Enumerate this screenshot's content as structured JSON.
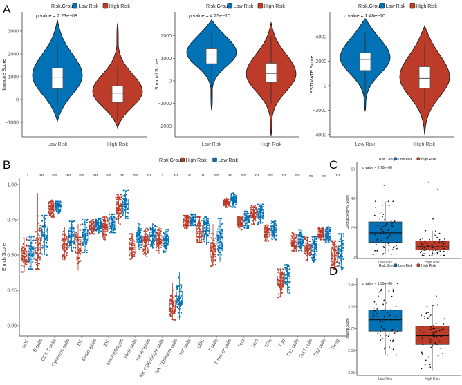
{
  "colors": {
    "low": "#0072B5",
    "high": "#BC3C29"
  },
  "chart_data": [
    {
      "panel": "A",
      "type": "violin",
      "legend_title": "Risk.Group",
      "legend": [
        "Low Risk",
        "High Risk"
      ],
      "legend_placement": "top",
      "plots": [
        {
          "ylabel": "Immune Score",
          "pvalue": "p value = 2.23e−08",
          "yticks": [
            -1000,
            0,
            1000,
            2000,
            3000
          ],
          "categories": [
            "Low Risk",
            "High Risk"
          ],
          "groups": [
            {
              "name": "Low Risk",
              "min": -950,
              "q1": 480,
              "median": 980,
              "q3": 1380,
              "max": 3500,
              "whisker": [
                -250,
                2500
              ],
              "mode": 1050
            },
            {
              "name": "High Risk",
              "min": -1250,
              "q1": -130,
              "median": 280,
              "q3": 600,
              "max": 3350,
              "whisker": [
                -900,
                1450
              ],
              "mode": 350
            }
          ]
        },
        {
          "ylabel": "Stromal Score",
          "pvalue": "p value = 4.25e−10",
          "yticks": [
            -2000,
            -1000,
            0,
            1000,
            2000
          ],
          "categories": [
            "Low Risk",
            "High Risk"
          ],
          "groups": [
            {
              "name": "Low Risk",
              "min": -1300,
              "q1": 760,
              "median": 1150,
              "q3": 1420,
              "max": 2700,
              "whisker": [
                -750,
                2150
              ],
              "mode": 1250
            },
            {
              "name": "High Risk",
              "min": -2450,
              "q1": -60,
              "median": 330,
              "q3": 780,
              "max": 2600,
              "whisker": [
                -1000,
                2000
              ],
              "mode": 300
            }
          ]
        },
        {
          "ylabel": "ESTIMATE Score",
          "pvalue": "p value = 1.48e−10",
          "yticks": [
            -4000,
            -2000,
            0,
            2000,
            4000
          ],
          "categories": [
            "Low Risk",
            "High Risk"
          ],
          "groups": [
            {
              "name": "Low Risk",
              "min": -2100,
              "q1": 1250,
              "median": 2150,
              "q3": 2700,
              "max": 5500,
              "whisker": [
                -1000,
                4300
              ],
              "mode": 2300
            },
            {
              "name": "High Risk",
              "min": -4000,
              "q1": -200,
              "median": 600,
              "q3": 1550,
              "max": 4900,
              "whisker": [
                -1900,
                3500
              ],
              "mode": 700
            }
          ]
        }
      ]
    },
    {
      "panel": "B",
      "type": "boxplot_jitter",
      "legend_title": "Risk.Group",
      "legend": [
        "High Risk",
        "Low Risk"
      ],
      "legend_placement": "top",
      "ylabel": "Enrich Score",
      "yticks": [
        "0.00",
        "0.25",
        "0.50",
        "0.75",
        "1.00"
      ],
      "ylim": [
        0,
        1.08
      ],
      "categories": [
        "aDC",
        "B cells",
        "CD8 T cells",
        "Cytotoxic cells",
        "DC",
        "Eosinophils",
        "iDC",
        "Macrophages",
        "Mast cells",
        "Neutrophils",
        "NK CD56bright cells",
        "NK CD56dim cells",
        "NK cells",
        "pDC",
        "T cells",
        "T helper cells",
        "Tcm",
        "Tem",
        "TFH",
        "Tgd",
        "Th1 cells",
        "Th17 cells",
        "Th2 cells",
        "TReg"
      ],
      "significance": [
        "*",
        "****",
        "****",
        "****",
        "****",
        "****",
        "****",
        "****",
        "****",
        "***",
        "*",
        "***",
        "**",
        "**",
        "****",
        "****",
        "****",
        "***",
        "****",
        "***",
        "****",
        "ns",
        "ns",
        "***"
      ],
      "high": [
        [
          0.38,
          0.46,
          0.49,
          0.53,
          0.62
        ],
        [
          0.4,
          0.51,
          0.55,
          0.62,
          0.94
        ],
        [
          0.77,
          0.81,
          0.83,
          0.85,
          0.89
        ],
        [
          0.47,
          0.54,
          0.57,
          0.61,
          0.7
        ],
        [
          0.39,
          0.52,
          0.57,
          0.61,
          0.72
        ],
        [
          0.65,
          0.68,
          0.7,
          0.72,
          0.75
        ],
        [
          0.61,
          0.67,
          0.7,
          0.73,
          0.77
        ],
        [
          0.72,
          0.79,
          0.83,
          0.87,
          0.93
        ],
        [
          0.47,
          0.52,
          0.55,
          0.58,
          0.65
        ],
        [
          0.49,
          0.57,
          0.6,
          0.63,
          0.69
        ],
        [
          0.51,
          0.58,
          0.61,
          0.64,
          0.7
        ],
        [
          0.04,
          0.1,
          0.14,
          0.18,
          0.3
        ],
        [
          0.69,
          0.72,
          0.74,
          0.76,
          0.78
        ],
        [
          0.59,
          0.63,
          0.67,
          0.71,
          0.77
        ],
        [
          0.42,
          0.5,
          0.53,
          0.57,
          0.72
        ],
        [
          0.84,
          0.86,
          0.87,
          0.88,
          0.91
        ],
        [
          0.68,
          0.71,
          0.73,
          0.75,
          0.77
        ],
        [
          0.72,
          0.77,
          0.79,
          0.82,
          0.85
        ],
        [
          0.6,
          0.63,
          0.66,
          0.68,
          0.72
        ],
        [
          0.2,
          0.28,
          0.31,
          0.35,
          0.4
        ],
        [
          0.53,
          0.57,
          0.59,
          0.62,
          0.66
        ],
        [
          0.46,
          0.51,
          0.54,
          0.57,
          0.63
        ],
        [
          0.61,
          0.63,
          0.65,
          0.67,
          0.69
        ],
        [
          0.4,
          0.45,
          0.49,
          0.55,
          0.6
        ]
      ],
      "low": [
        [
          0.4,
          0.47,
          0.51,
          0.56,
          0.63
        ],
        [
          0.5,
          0.6,
          0.65,
          0.7,
          0.78
        ],
        [
          0.79,
          0.82,
          0.84,
          0.86,
          0.88
        ],
        [
          0.53,
          0.59,
          0.63,
          0.67,
          0.74
        ],
        [
          0.52,
          0.6,
          0.64,
          0.68,
          0.75
        ],
        [
          0.65,
          0.69,
          0.71,
          0.73,
          0.76
        ],
        [
          0.66,
          0.7,
          0.73,
          0.76,
          0.79
        ],
        [
          0.76,
          0.82,
          0.86,
          0.89,
          0.96
        ],
        [
          0.54,
          0.59,
          0.62,
          0.65,
          0.73
        ],
        [
          0.55,
          0.6,
          0.63,
          0.66,
          0.73
        ],
        [
          0.52,
          0.57,
          0.6,
          0.63,
          0.68
        ],
        [
          0.04,
          0.15,
          0.19,
          0.24,
          0.38
        ],
        [
          0.71,
          0.73,
          0.75,
          0.77,
          0.79
        ],
        [
          0.57,
          0.65,
          0.69,
          0.72,
          0.77
        ],
        [
          0.45,
          0.57,
          0.62,
          0.67,
          0.76
        ],
        [
          0.84,
          0.87,
          0.89,
          0.91,
          0.94
        ],
        [
          0.69,
          0.73,
          0.76,
          0.78,
          0.81
        ],
        [
          0.72,
          0.77,
          0.8,
          0.82,
          0.86
        ],
        [
          0.61,
          0.66,
          0.69,
          0.71,
          0.74
        ],
        [
          0.23,
          0.31,
          0.35,
          0.38,
          0.43
        ],
        [
          0.53,
          0.58,
          0.6,
          0.63,
          0.68
        ],
        [
          0.45,
          0.5,
          0.55,
          0.58,
          0.63
        ],
        [
          0.59,
          0.63,
          0.65,
          0.67,
          0.7
        ],
        [
          0.39,
          0.48,
          0.53,
          0.57,
          0.65
        ]
      ]
    },
    {
      "panel": "C",
      "type": "boxplot_jitter",
      "legend_title": "Risk.Group",
      "legend": [
        "Low Risk",
        "High Risk"
      ],
      "ylabel": "Cytolytic Activity Score",
      "pvalue": "p value = 2.78e−08",
      "yticks": [
        "0",
        "20",
        "40",
        "60"
      ],
      "ylim": [
        0,
        62
      ],
      "categories": [
        "Low Risk",
        "High Risk"
      ],
      "groups": [
        {
          "name": "Low Risk",
          "whisker": [
            2,
            38
          ],
          "q1": 10,
          "median": 16.5,
          "q3": 24,
          "outliers": [
            49,
            60
          ]
        },
        {
          "name": "High Risk",
          "whisker": [
            1,
            18
          ],
          "q1": 5,
          "median": 7,
          "q3": 11,
          "outliers": [
            26,
            46,
            51
          ]
        }
      ]
    },
    {
      "panel": "D",
      "type": "boxplot_jitter",
      "legend_title": "Risk.Group",
      "legend": [
        "Low Risk",
        "High Risk"
      ],
      "ylabel": "Inflame Score",
      "pvalue": "p value = 1.36e−08",
      "yticks": [
        "2.25",
        "2.50",
        "2.75",
        "3.00",
        "3.25"
      ],
      "ylim": [
        2.22,
        3.3
      ],
      "categories": [
        "Low Risk",
        "High Risk"
      ],
      "groups": [
        {
          "name": "Low Risk",
          "whisker": [
            2.45,
            3.27
          ],
          "q1": 2.72,
          "median": 2.85,
          "q3": 2.96,
          "outliers": []
        },
        {
          "name": "High Risk",
          "whisker": [
            2.27,
            3.02
          ],
          "q1": 2.57,
          "median": 2.67,
          "q3": 2.78,
          "outliers": [
            3.12
          ]
        }
      ]
    }
  ]
}
